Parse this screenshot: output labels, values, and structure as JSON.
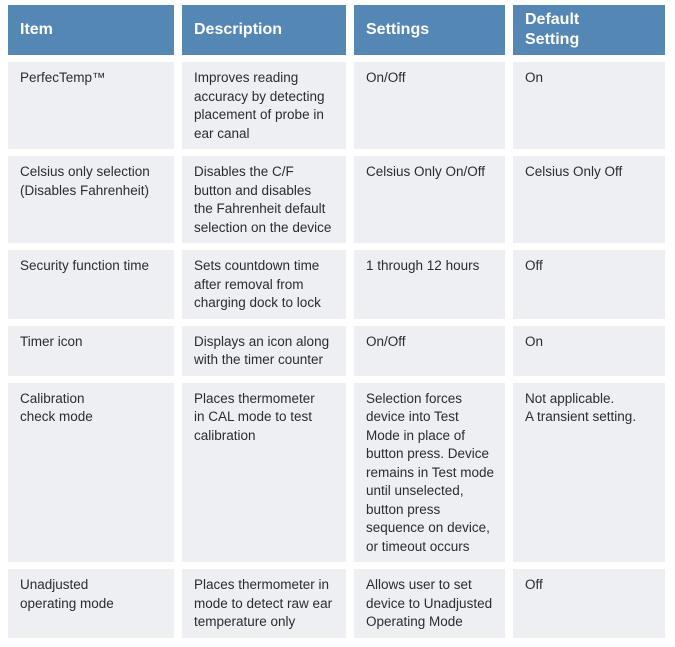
{
  "colors": {
    "header_bg": "#5587b4",
    "header_text": "#ffffff",
    "row_bg": "#edeff2",
    "body_text": "#2b2b32",
    "page_bg": "#ffffff"
  },
  "table": {
    "columns": [
      {
        "label": "Item"
      },
      {
        "label": "Description"
      },
      {
        "label": "Settings"
      },
      {
        "label": "Default\nSetting"
      }
    ],
    "rows": [
      {
        "item": "PerfecTemp™",
        "description": "Improves reading\naccuracy by detecting\nplacement of probe in\near canal",
        "settings": "On/Off",
        "default_setting": "On"
      },
      {
        "item": "Celsius only selection\n(Disables Fahrenheit)",
        "description": "Disables the C/F\nbutton and disables\nthe Fahrenheit default\nselection on the device",
        "settings": "Celsius Only On/Off",
        "default_setting": "Celsius Only Off"
      },
      {
        "item": "Security function time",
        "description": "Sets countdown time\nafter removal from\ncharging dock to lock",
        "settings": "1 through 12 hours",
        "default_setting": "Off"
      },
      {
        "item": "Timer icon",
        "description": "Displays an icon along\nwith the timer counter",
        "settings": "On/Off",
        "default_setting": "On"
      },
      {
        "item": "Calibration\ncheck mode",
        "description": "Places thermometer\nin CAL mode to test\ncalibration",
        "settings": "Selection forces\ndevice into Test\nMode in place of\nbutton press. Device\nremains in Test mode\nuntil unselected,\nbutton press\nsequence on device,\nor timeout occurs",
        "default_setting": "Not applicable.\nA transient setting."
      },
      {
        "item": "Unadjusted\noperating mode",
        "description": "Places thermometer in\nmode to detect raw ear\ntemperature only",
        "settings": "Allows user to set\ndevice to Unadjusted\nOperating Mode",
        "default_setting": "Off"
      }
    ]
  }
}
